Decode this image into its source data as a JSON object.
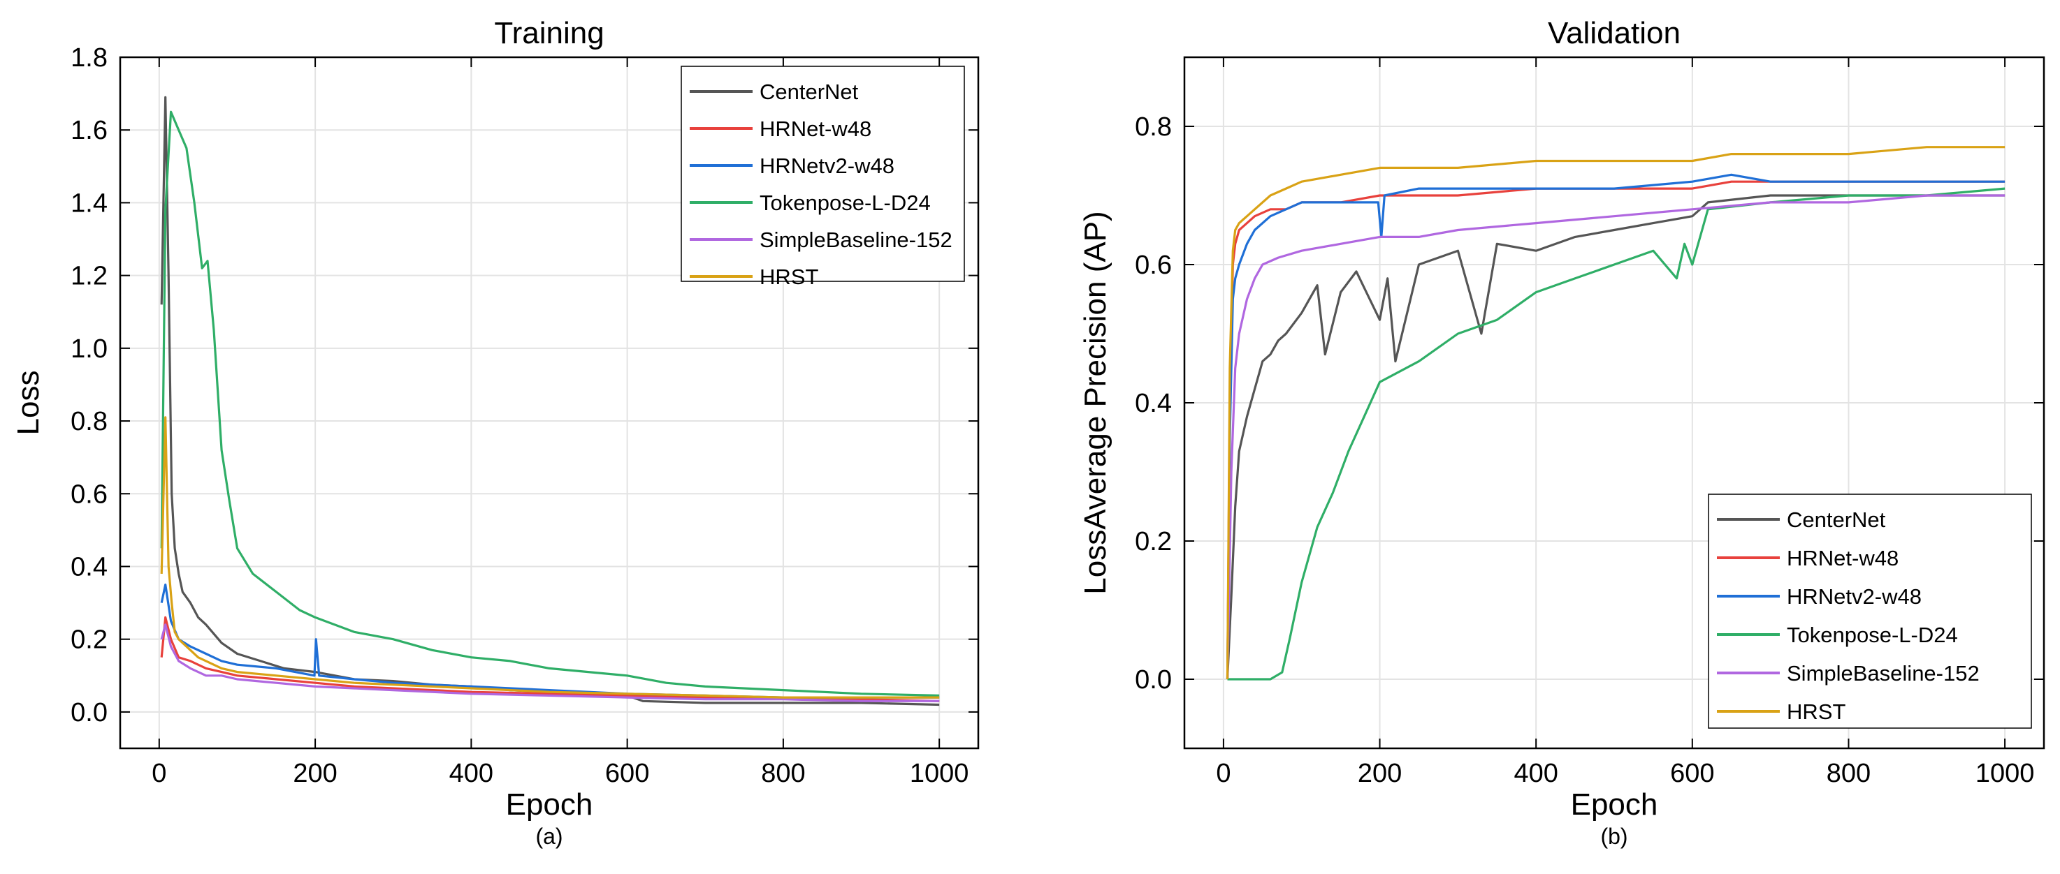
{
  "chart_data": [
    {
      "type": "line",
      "title": "Training",
      "xlabel": "Epoch",
      "ylabel": "Loss",
      "caption": "(a)",
      "xlim": [
        -50,
        1050
      ],
      "ylim": [
        -0.1,
        1.8
      ],
      "xticks": [
        0,
        200,
        400,
        600,
        800,
        1000
      ],
      "yticks": [
        0.0,
        0.2,
        0.4,
        0.6,
        0.8,
        1.0,
        1.2,
        1.4,
        1.6,
        1.8
      ],
      "ytick_decimals": 1,
      "grid": true,
      "legend_position": "top-right",
      "series": [
        {
          "name": "CenterNet",
          "color": "#555555",
          "x": [
            3,
            8,
            12,
            16,
            20,
            25,
            30,
            40,
            50,
            60,
            80,
            100,
            130,
            160,
            200,
            250,
            300,
            350,
            400,
            450,
            500,
            550,
            600,
            620,
            700,
            800,
            900,
            1000
          ],
          "y": [
            1.12,
            1.69,
            1.2,
            0.6,
            0.45,
            0.38,
            0.33,
            0.3,
            0.26,
            0.24,
            0.19,
            0.16,
            0.14,
            0.12,
            0.11,
            0.09,
            0.085,
            0.075,
            0.07,
            0.06,
            0.055,
            0.05,
            0.045,
            0.03,
            0.025,
            0.025,
            0.025,
            0.02
          ]
        },
        {
          "name": "HRNet-w48",
          "color": "#e8413c",
          "x": [
            3,
            8,
            15,
            25,
            40,
            60,
            80,
            100,
            150,
            200,
            250,
            300,
            400,
            500,
            600,
            700,
            800,
            900,
            1000
          ],
          "y": [
            0.15,
            0.26,
            0.2,
            0.15,
            0.14,
            0.12,
            0.11,
            0.1,
            0.09,
            0.08,
            0.07,
            0.065,
            0.055,
            0.05,
            0.045,
            0.04,
            0.04,
            0.035,
            0.03
          ]
        },
        {
          "name": "HRNetv2-w48",
          "color": "#1f6fd6",
          "x": [
            3,
            8,
            15,
            25,
            40,
            60,
            80,
            100,
            150,
            199,
            201,
            205,
            250,
            300,
            400,
            500,
            600,
            700,
            800,
            900,
            1000
          ],
          "y": [
            0.3,
            0.35,
            0.25,
            0.2,
            0.18,
            0.16,
            0.14,
            0.13,
            0.12,
            0.1,
            0.2,
            0.1,
            0.09,
            0.08,
            0.07,
            0.06,
            0.05,
            0.045,
            0.04,
            0.04,
            0.04
          ]
        },
        {
          "name": "Tokenpose-L-D24",
          "color": "#2fae67",
          "x": [
            3,
            8,
            15,
            25,
            35,
            45,
            55,
            62,
            70,
            80,
            90,
            100,
            120,
            150,
            180,
            200,
            250,
            300,
            350,
            400,
            450,
            500,
            550,
            600,
            650,
            700,
            800,
            900,
            1000
          ],
          "y": [
            0.45,
            1.38,
            1.65,
            1.6,
            1.55,
            1.4,
            1.22,
            1.24,
            1.05,
            0.72,
            0.58,
            0.45,
            0.38,
            0.33,
            0.28,
            0.26,
            0.22,
            0.2,
            0.17,
            0.15,
            0.14,
            0.12,
            0.11,
            0.1,
            0.08,
            0.07,
            0.06,
            0.05,
            0.045
          ]
        },
        {
          "name": "SimpleBaseline-152",
          "color": "#b067e0",
          "x": [
            3,
            8,
            15,
            25,
            40,
            60,
            80,
            100,
            150,
            200,
            250,
            300,
            400,
            500,
            600,
            700,
            800,
            900,
            1000
          ],
          "y": [
            0.2,
            0.24,
            0.18,
            0.14,
            0.12,
            0.1,
            0.1,
            0.09,
            0.08,
            0.07,
            0.065,
            0.06,
            0.05,
            0.045,
            0.04,
            0.035,
            0.035,
            0.03,
            0.03
          ]
        },
        {
          "name": "HRST",
          "color": "#d9a215",
          "x": [
            3,
            8,
            12,
            16,
            20,
            25,
            30,
            40,
            50,
            60,
            80,
            100,
            150,
            200,
            250,
            300,
            400,
            500,
            600,
            700,
            800,
            900,
            1000
          ],
          "y": [
            0.38,
            0.81,
            0.4,
            0.3,
            0.22,
            0.2,
            0.19,
            0.17,
            0.15,
            0.14,
            0.12,
            0.11,
            0.1,
            0.09,
            0.08,
            0.075,
            0.065,
            0.055,
            0.05,
            0.045,
            0.04,
            0.04,
            0.04
          ]
        }
      ]
    },
    {
      "type": "line",
      "title": "Validation",
      "xlabel": "Epoch",
      "ylabel": "LossAverage Precision (AP)",
      "caption": "(b)",
      "xlim": [
        -50,
        1050
      ],
      "ylim": [
        -0.1,
        0.9
      ],
      "xticks": [
        0,
        200,
        400,
        600,
        800,
        1000
      ],
      "yticks": [
        0.0,
        0.2,
        0.4,
        0.6,
        0.8
      ],
      "ytick_decimals": 1,
      "grid": true,
      "legend_position": "bottom-right",
      "series": [
        {
          "name": "CenterNet",
          "color": "#555555",
          "x": [
            5,
            10,
            15,
            20,
            30,
            40,
            50,
            60,
            70,
            80,
            100,
            120,
            130,
            150,
            170,
            200,
            210,
            220,
            250,
            300,
            330,
            350,
            400,
            450,
            500,
            550,
            600,
            620,
            700,
            800,
            900,
            1000
          ],
          "y": [
            0.0,
            0.12,
            0.25,
            0.33,
            0.38,
            0.42,
            0.46,
            0.47,
            0.49,
            0.5,
            0.53,
            0.57,
            0.47,
            0.56,
            0.59,
            0.52,
            0.58,
            0.46,
            0.6,
            0.62,
            0.5,
            0.63,
            0.62,
            0.64,
            0.65,
            0.66,
            0.67,
            0.69,
            0.7,
            0.7,
            0.7,
            0.7
          ]
        },
        {
          "name": "HRNet-w48",
          "color": "#e8413c",
          "x": [
            5,
            8,
            12,
            15,
            20,
            30,
            40,
            60,
            80,
            100,
            150,
            200,
            250,
            300,
            400,
            500,
            600,
            650,
            700,
            800,
            900,
            1000
          ],
          "y": [
            0.0,
            0.4,
            0.6,
            0.63,
            0.65,
            0.66,
            0.67,
            0.68,
            0.68,
            0.69,
            0.69,
            0.7,
            0.7,
            0.7,
            0.71,
            0.71,
            0.71,
            0.72,
            0.72,
            0.72,
            0.72,
            0.72
          ]
        },
        {
          "name": "HRNetv2-w48",
          "color": "#1f6fd6",
          "x": [
            5,
            8,
            12,
            15,
            20,
            30,
            40,
            60,
            80,
            100,
            150,
            198,
            202,
            206,
            250,
            300,
            400,
            500,
            600,
            650,
            700,
            800,
            900,
            1000
          ],
          "y": [
            0.0,
            0.35,
            0.55,
            0.58,
            0.6,
            0.63,
            0.65,
            0.67,
            0.68,
            0.69,
            0.69,
            0.69,
            0.64,
            0.7,
            0.71,
            0.71,
            0.71,
            0.71,
            0.72,
            0.73,
            0.72,
            0.72,
            0.72,
            0.72
          ]
        },
        {
          "name": "Tokenpose-L-D24",
          "color": "#2fae67",
          "x": [
            5,
            20,
            40,
            60,
            75,
            85,
            100,
            120,
            140,
            160,
            180,
            200,
            250,
            300,
            350,
            400,
            450,
            500,
            550,
            580,
            590,
            600,
            620,
            700,
            800,
            900,
            1000
          ],
          "y": [
            0.0,
            0.0,
            0.0,
            0.0,
            0.01,
            0.06,
            0.14,
            0.22,
            0.27,
            0.33,
            0.38,
            0.43,
            0.46,
            0.5,
            0.52,
            0.56,
            0.58,
            0.6,
            0.62,
            0.58,
            0.63,
            0.6,
            0.68,
            0.69,
            0.7,
            0.7,
            0.71
          ]
        },
        {
          "name": "SimpleBaseline-152",
          "color": "#b067e0",
          "x": [
            5,
            10,
            15,
            20,
            30,
            40,
            50,
            70,
            100,
            150,
            200,
            250,
            300,
            400,
            500,
            600,
            700,
            800,
            900,
            1000
          ],
          "y": [
            0.0,
            0.3,
            0.45,
            0.5,
            0.55,
            0.58,
            0.6,
            0.61,
            0.62,
            0.63,
            0.64,
            0.64,
            0.65,
            0.66,
            0.67,
            0.68,
            0.69,
            0.69,
            0.7,
            0.7
          ]
        },
        {
          "name": "HRST",
          "color": "#d9a215",
          "x": [
            5,
            8,
            12,
            15,
            20,
            30,
            40,
            60,
            80,
            100,
            150,
            200,
            250,
            300,
            400,
            500,
            550,
            600,
            650,
            700,
            800,
            900,
            1000
          ],
          "y": [
            0.0,
            0.45,
            0.62,
            0.65,
            0.66,
            0.67,
            0.68,
            0.7,
            0.71,
            0.72,
            0.73,
            0.74,
            0.74,
            0.74,
            0.75,
            0.75,
            0.75,
            0.75,
            0.76,
            0.76,
            0.76,
            0.77,
            0.77
          ]
        }
      ]
    }
  ]
}
